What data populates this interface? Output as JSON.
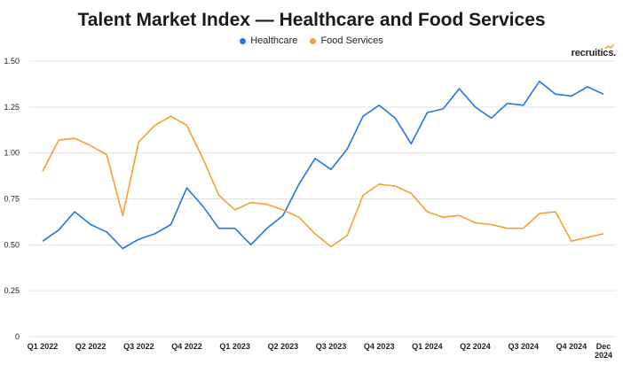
{
  "chart_data": {
    "type": "line",
    "title": "Talent Market Index — Healthcare and Food Services",
    "xlabel": "",
    "ylabel": "",
    "ylim": [
      0,
      1.5
    ],
    "yticks": [
      "0",
      "0.25",
      "0.50",
      "0.75",
      "1.00",
      "1.25",
      "1.50"
    ],
    "ytick_values": [
      0,
      0.25,
      0.5,
      0.75,
      1.0,
      1.25,
      1.5
    ],
    "xtick_labels": [
      "Q1 2022",
      "Q2 2022",
      "Q3 2022",
      "Q4 2022",
      "Q1 2023",
      "Q2 2023",
      "Q3 2023",
      "Q4 2023",
      "Q1 2024",
      "Q2 2024",
      "Q3 2024",
      "Q4 2024",
      "Dec 2024"
    ],
    "xtick_index": [
      0,
      3,
      6,
      9,
      12,
      15,
      18,
      21,
      24,
      27,
      30,
      33,
      35
    ],
    "grid": true,
    "legend_position": "top-center",
    "series": [
      {
        "name": "Healthcare",
        "color": "#1f77e8",
        "values": [
          0.52,
          0.58,
          0.68,
          0.61,
          0.57,
          0.48,
          0.53,
          0.56,
          0.61,
          0.81,
          0.71,
          0.59,
          0.59,
          0.5,
          0.59,
          0.66,
          0.83,
          0.97,
          0.91,
          1.02,
          1.2,
          1.26,
          1.19,
          1.05,
          1.22,
          1.24,
          1.35,
          1.25,
          1.19,
          1.27,
          1.26,
          1.39,
          1.32,
          1.31,
          1.36,
          1.32
        ]
      },
      {
        "name": "Food Services",
        "color": "#f2a230",
        "values": [
          0.9,
          1.07,
          1.08,
          1.04,
          0.99,
          0.66,
          1.06,
          1.15,
          1.2,
          1.15,
          0.97,
          0.77,
          0.69,
          0.73,
          0.72,
          0.69,
          0.65,
          0.56,
          0.49,
          0.55,
          0.77,
          0.83,
          0.82,
          0.78,
          0.68,
          0.65,
          0.66,
          0.62,
          0.61,
          0.59,
          0.59,
          0.67,
          0.68,
          0.52,
          0.54,
          0.56
        ]
      }
    ]
  },
  "branding": {
    "logo_text": "recruitics."
  }
}
